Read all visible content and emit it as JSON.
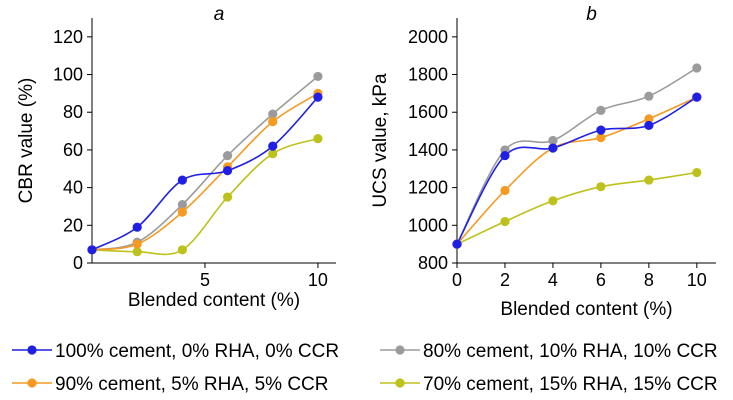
{
  "colors": {
    "series": [
      "#1f1fe6",
      "#f59a23",
      "#9b9b9b",
      "#bdc11b"
    ],
    "axis": "#000000"
  },
  "chart_data": [
    {
      "type": "line",
      "title": "a",
      "xlabel": "Blended content (%)",
      "ylabel": "CBR value (%)",
      "xlim": [
        0,
        10.8
      ],
      "ylim": [
        0,
        130
      ],
      "xticks": [
        5,
        10
      ],
      "yticks": [
        0,
        20,
        40,
        60,
        80,
        100,
        120
      ],
      "x": [
        0,
        2,
        4,
        6,
        8,
        10
      ],
      "series": [
        {
          "name": "100% cement, 0% RHA, 0% CCR",
          "values": [
            7,
            19,
            44,
            49,
            62,
            88
          ]
        },
        {
          "name": "90% cement, 5% RHA, 5% CCR",
          "values": [
            7,
            10,
            27,
            51,
            75,
            90
          ]
        },
        {
          "name": "80% cement, 10% RHA, 10% CCR",
          "values": [
            7,
            11,
            31,
            57,
            79,
            99
          ]
        },
        {
          "name": "70% cement, 15% RHA, 15% CCR",
          "values": [
            7,
            6,
            7,
            35,
            58,
            66
          ]
        }
      ]
    },
    {
      "type": "line",
      "title": "b",
      "xlabel": "Blended content (%)",
      "ylabel": "UCS value, kPa",
      "xlim": [
        0,
        10.8
      ],
      "ylim": [
        800,
        2100
      ],
      "xticks": [
        0,
        2,
        4,
        6,
        8,
        10
      ],
      "yticks": [
        800,
        1000,
        1200,
        1400,
        1600,
        1800,
        2000
      ],
      "x": [
        0,
        2,
        4,
        6,
        8,
        10
      ],
      "series": [
        {
          "name": "100% cement, 0% RHA, 0% CCR",
          "values": [
            900,
            1370,
            1410,
            1505,
            1530,
            1680
          ]
        },
        {
          "name": "90% cement, 5% RHA, 5% CCR",
          "values": [
            900,
            1185,
            1410,
            1465,
            1565,
            1680
          ]
        },
        {
          "name": "80% cement, 10% RHA, 10% CCR",
          "values": [
            900,
            1400,
            1450,
            1610,
            1685,
            1835
          ]
        },
        {
          "name": "70% cement, 15% RHA, 15% CCR",
          "values": [
            900,
            1020,
            1130,
            1205,
            1240,
            1280
          ]
        }
      ]
    }
  ],
  "legend": [
    "100% cement, 0% RHA, 0% CCR",
    "90% cement, 5% RHA, 5% CCR",
    "80% cement, 10% RHA, 10% CCR",
    "70% cement, 15% RHA, 15% CCR"
  ]
}
